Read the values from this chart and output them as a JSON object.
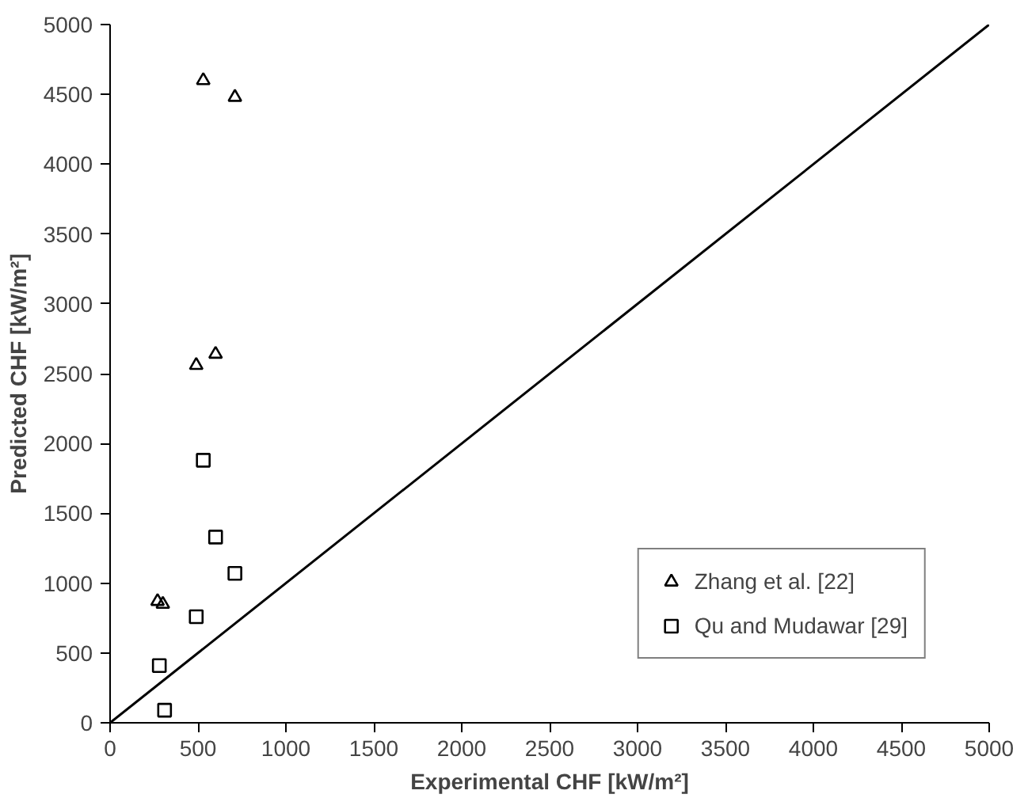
{
  "chart_data": {
    "type": "scatter",
    "xlabel": "Experimental CHF [kW/m²]",
    "ylabel": "Predicted CHF [kW/m²]",
    "xlim": [
      0,
      5000
    ],
    "ylim": [
      0,
      5000
    ],
    "xticks": [
      0,
      500,
      1000,
      1500,
      2000,
      2500,
      3000,
      3500,
      4000,
      4500,
      5000
    ],
    "yticks": [
      0,
      500,
      1000,
      1500,
      2000,
      2500,
      3000,
      3500,
      4000,
      4500,
      5000
    ],
    "grid": false,
    "legend": "bottom right",
    "series": [
      {
        "name": "Zhang et al. [22]",
        "color": "#000000",
        "marker": "triangle",
        "x": [
          530,
          710,
          490,
          600,
          270,
          300
        ],
        "values": [
          4600,
          4480,
          2560,
          2640,
          870,
          850
        ]
      },
      {
        "name": "Qu and Mudawar [29]",
        "color": "#000000",
        "marker": "square",
        "x": [
          530,
          600,
          710,
          490,
          280,
          310
        ],
        "values": [
          1880,
          1330,
          1070,
          760,
          410,
          90
        ]
      },
      {
        "type": "line",
        "color": "#000000",
        "marker": "none",
        "x": [
          0,
          5000
        ],
        "values": [
          0,
          5000
        ]
      }
    ]
  }
}
